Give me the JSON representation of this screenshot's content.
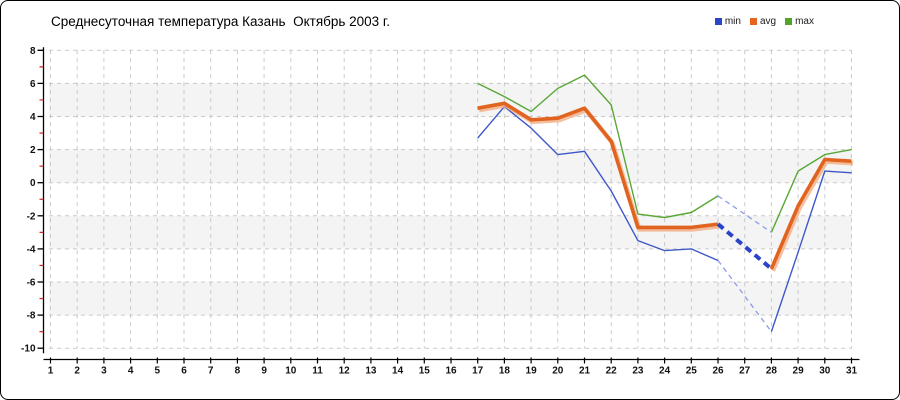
{
  "chart": {
    "title": "Среднесуточная температура Казань  Октябрь 2003 г.",
    "legend": [
      {
        "label": "min",
        "color": "#2b43c8"
      },
      {
        "label": "avg",
        "color": "#e7641f"
      },
      {
        "label": "max",
        "color": "#52a32c"
      }
    ]
  },
  "chart_data": {
    "type": "line",
    "title": "Среднесуточная температура Казань  Октябрь 2003 г.",
    "xlabel": "",
    "ylabel": "",
    "xlim": [
      1,
      31
    ],
    "ylim": [
      -10,
      8
    ],
    "grid": "dashed",
    "legend_position": "top-right",
    "x_ticks": [
      1,
      2,
      3,
      4,
      5,
      6,
      7,
      8,
      9,
      10,
      11,
      12,
      13,
      14,
      15,
      16,
      17,
      18,
      19,
      20,
      21,
      22,
      23,
      24,
      25,
      26,
      27,
      28,
      29,
      30,
      31
    ],
    "y_ticks": [
      8,
      6,
      4,
      2,
      0,
      -2,
      -4,
      -6,
      -8,
      -10
    ],
    "x": [
      17,
      18,
      19,
      20,
      21,
      22,
      23,
      24,
      25,
      26,
      27,
      28,
      29,
      30,
      31
    ],
    "series": [
      {
        "name": "min",
        "color": "#3f58c9",
        "values": [
          2.7,
          4.6,
          3.3,
          1.7,
          1.9,
          -0.5,
          -3.5,
          -4.1,
          -4.0,
          -4.7,
          null,
          -9.0,
          -4.2,
          0.7,
          0.6
        ]
      },
      {
        "name": "avg",
        "color": "#e0641f",
        "halo_color": "#f2a87c",
        "values": [
          4.5,
          4.8,
          3.8,
          3.9,
          4.5,
          2.5,
          -2.7,
          -2.7,
          -2.7,
          -2.5,
          null,
          -5.2,
          -1.4,
          1.4,
          1.3
        ]
      },
      {
        "name": "max",
        "color": "#58a836",
        "values": [
          6.0,
          5.2,
          4.3,
          5.7,
          6.5,
          4.7,
          -1.9,
          -2.1,
          -1.8,
          -0.8,
          null,
          -3.0,
          0.7,
          1.7,
          2.0
        ]
      }
    ],
    "gap_days": [
      27
    ],
    "gap_note": "day 27 has no data; gap bridged with dashed blue interpolation lines",
    "styles": {
      "band_color": "#f4f4f4",
      "grid_color": "#c9c9c9",
      "axis_color": "#000000",
      "minor_tick_color": "#cc2222",
      "tick_label_color": "#111111",
      "gap_thin_dash_color": "#8c9ce8",
      "gap_thick_dash_color": "#2b43c8"
    }
  }
}
